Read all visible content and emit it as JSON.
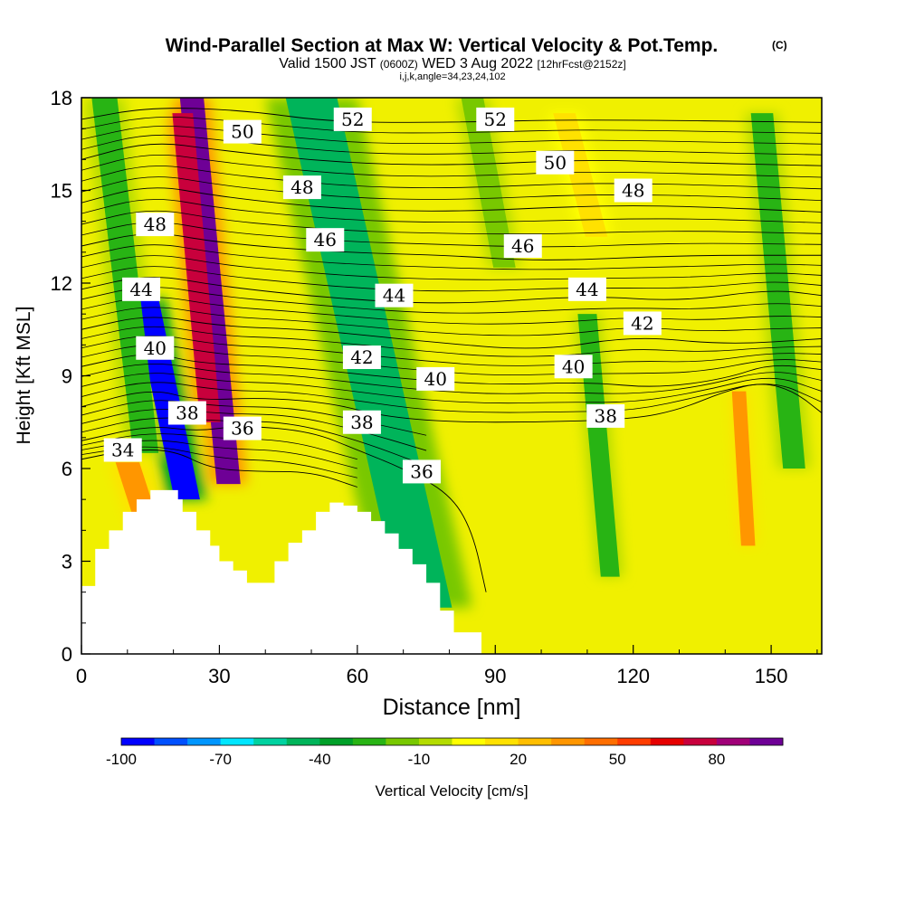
{
  "chart_data": {
    "type": "heatmap",
    "title": "Wind-Parallel Section at Max W: Vertical Velocity & Pot.Temp.",
    "title_mark": "(C)",
    "subtitle_valid": "Valid 1500 JST",
    "subtitle_utc": "(0600Z)",
    "subtitle_date": "WED 3 Aug 2022",
    "subtitle_fcst": "[12hrFcst@2152z]",
    "subtitle_ijk": "i,j,k,angle=34,23,24,102",
    "xlabel": "Distance [nm]",
    "ylabel": "Height [Kft MSL]",
    "xlim": [
      0,
      161
    ],
    "ylim": [
      0,
      18
    ],
    "x_ticks": [
      "0",
      "30",
      "60",
      "90",
      "120",
      "150"
    ],
    "x_tick_values": [
      0,
      30,
      60,
      90,
      120,
      150
    ],
    "y_ticks": [
      "0",
      "3",
      "6",
      "9",
      "12",
      "15",
      "18"
    ],
    "y_tick_values": [
      0,
      3,
      6,
      9,
      12,
      15,
      18
    ],
    "colorbar": {
      "label": "Vertical Velocity [cm/s]",
      "tick_labels": [
        "-100",
        "-70",
        "-40",
        "-10",
        "20",
        "50",
        "80"
      ],
      "tick_values": [
        -100,
        -70,
        -40,
        -10,
        20,
        50,
        80
      ],
      "levels": [
        -100,
        -90,
        -80,
        -70,
        -60,
        -50,
        -40,
        -30,
        -20,
        -10,
        0,
        10,
        20,
        30,
        40,
        50,
        60,
        70,
        80,
        90
      ],
      "colors": [
        "#0000ff",
        "#0050ff",
        "#0096ff",
        "#00e6ff",
        "#00d2a0",
        "#00b45a",
        "#00a028",
        "#28b414",
        "#78c800",
        "#b4dc00",
        "#ffff00",
        "#ffe100",
        "#ffbe00",
        "#ff9600",
        "#ff6e00",
        "#ff3c00",
        "#e60000",
        "#c8003c",
        "#a00078",
        "#6e0096"
      ]
    },
    "terrain_profile": {
      "x": [
        0,
        3,
        3,
        6,
        6,
        9,
        9,
        12,
        12,
        15,
        15,
        18,
        18,
        21,
        21,
        22,
        22,
        25,
        25,
        28,
        28,
        30,
        30,
        33,
        33,
        36,
        36,
        42,
        42,
        45,
        45,
        48,
        48,
        51,
        51,
        54,
        54,
        57,
        57,
        60,
        60,
        63,
        63,
        66,
        66,
        69,
        69,
        72,
        72,
        75,
        75,
        78,
        78,
        81,
        81,
        87,
        87
      ],
      "y": [
        2.2,
        2.2,
        3.4,
        3.4,
        4.0,
        4.0,
        4.6,
        4.6,
        5.0,
        5.0,
        5.3,
        5.3,
        5.3,
        5.3,
        5.0,
        5.0,
        4.6,
        4.6,
        4.0,
        4.0,
        3.5,
        3.5,
        3.0,
        3.0,
        2.7,
        2.7,
        2.3,
        2.3,
        3.0,
        3.0,
        3.6,
        3.6,
        4.0,
        4.0,
        4.6,
        4.6,
        4.9,
        4.9,
        4.8,
        4.8,
        4.6,
        4.6,
        4.3,
        4.3,
        3.9,
        3.9,
        3.4,
        3.4,
        2.9,
        2.9,
        2.3,
        2.3,
        1.4,
        1.4,
        0.7,
        0.7,
        0.3
      ]
    },
    "updrafts": [
      {
        "x0": 24,
        "x1": 32,
        "ytop": 18,
        "ybot": 5.5,
        "w": 90
      },
      {
        "x0": 22,
        "x1": 28,
        "ytop": 17.5,
        "ybot": 7.5,
        "w": 75
      },
      {
        "x0": 10,
        "x1": 18,
        "ytop": 6.2,
        "ybot": 2.5,
        "w": 30
      },
      {
        "x0": 143,
        "x1": 145,
        "ytop": 8.5,
        "ybot": 3.5,
        "w": 30
      },
      {
        "x0": 105,
        "x1": 112,
        "ytop": 17.5,
        "ybot": 13.5,
        "w": 15
      }
    ],
    "downdrafts": [
      {
        "x0": 14,
        "x1": 23,
        "ytop": 11.5,
        "ybot": 5.0,
        "w": -95
      },
      {
        "x0": 50,
        "x1": 75,
        "ytop": 18,
        "ybot": 1.5,
        "w": -45
      },
      {
        "x0": 5,
        "x1": 14,
        "ytop": 18,
        "ybot": 6.5,
        "w": -25
      },
      {
        "x0": 85,
        "x1": 92,
        "ytop": 18,
        "ybot": 12.5,
        "w": -20
      },
      {
        "x0": 110,
        "x1": 115,
        "ytop": 11.0,
        "ybot": 2.5,
        "w": -25
      },
      {
        "x0": 148,
        "x1": 155,
        "ytop": 17.5,
        "ybot": 6.0,
        "w": -25
      }
    ],
    "isentropes": [
      {
        "value": 34,
        "points": [
          [
            0,
            6.3
          ],
          [
            10,
            6.6
          ],
          [
            20,
            6.6
          ],
          [
            28,
            6.0
          ],
          [
            38,
            5.9
          ],
          [
            50,
            5.9
          ],
          [
            60,
            5.4
          ]
        ]
      },
      {
        "value": 36,
        "points": [
          [
            0,
            6.9
          ],
          [
            15,
            7.4
          ],
          [
            25,
            7.2
          ],
          [
            35,
            7.4
          ],
          [
            50,
            7.2
          ],
          [
            60,
            6.6
          ],
          [
            70,
            6.0
          ],
          [
            80,
            5.2
          ],
          [
            85,
            4.0
          ],
          [
            88,
            2.0
          ]
        ]
      },
      {
        "value": 38,
        "points": [
          [
            0,
            8.0
          ],
          [
            15,
            8.6
          ],
          [
            25,
            8.2
          ],
          [
            40,
            8.3
          ],
          [
            55,
            8.1
          ],
          [
            65,
            7.7
          ],
          [
            80,
            7.5
          ],
          [
            100,
            7.5
          ],
          [
            120,
            7.6
          ],
          [
            130,
            7.9
          ],
          [
            140,
            8.5
          ],
          [
            148,
            8.8
          ],
          [
            155,
            8.5
          ],
          [
            161,
            7.8
          ]
        ]
      },
      {
        "value": 40,
        "points": [
          [
            0,
            9.3
          ],
          [
            15,
            9.8
          ],
          [
            25,
            9.4
          ],
          [
            45,
            9.3
          ],
          [
            70,
            8.9
          ],
          [
            90,
            8.7
          ],
          [
            110,
            8.8
          ],
          [
            125,
            8.6
          ],
          [
            140,
            8.9
          ],
          [
            150,
            9.4
          ],
          [
            161,
            9.2
          ]
        ]
      },
      {
        "value": 42,
        "points": [
          [
            0,
            10.5
          ],
          [
            15,
            11.0
          ],
          [
            30,
            10.6
          ],
          [
            50,
            10.5
          ],
          [
            75,
            10.1
          ],
          [
            100,
            9.8
          ],
          [
            120,
            10.3
          ],
          [
            140,
            10.0
          ],
          [
            161,
            10.2
          ]
        ]
      },
      {
        "value": 44,
        "points": [
          [
            0,
            11.8
          ],
          [
            15,
            12.3
          ],
          [
            30,
            11.9
          ],
          [
            55,
            11.5
          ],
          [
            80,
            11.3
          ],
          [
            110,
            11.6
          ],
          [
            130,
            11.4
          ],
          [
            150,
            11.8
          ],
          [
            161,
            11.6
          ]
        ]
      },
      {
        "value": 46,
        "points": [
          [
            0,
            13.2
          ],
          [
            15,
            13.7
          ],
          [
            30,
            13.3
          ],
          [
            55,
            13.0
          ],
          [
            80,
            12.9
          ],
          [
            100,
            12.7
          ],
          [
            130,
            12.9
          ],
          [
            161,
            12.9
          ]
        ]
      },
      {
        "value": 48,
        "points": [
          [
            0,
            14.6
          ],
          [
            15,
            15.2
          ],
          [
            30,
            14.8
          ],
          [
            55,
            14.4
          ],
          [
            80,
            14.3
          ],
          [
            110,
            14.5
          ],
          [
            130,
            14.5
          ],
          [
            161,
            14.3
          ]
        ]
      },
      {
        "value": 50,
        "points": [
          [
            0,
            16.0
          ],
          [
            15,
            16.6
          ],
          [
            30,
            16.3
          ],
          [
            55,
            15.9
          ],
          [
            80,
            15.8
          ],
          [
            110,
            16.0
          ],
          [
            130,
            15.9
          ],
          [
            161,
            15.8
          ]
        ]
      },
      {
        "value": 52,
        "points": [
          [
            0,
            17.3
          ],
          [
            15,
            17.7
          ],
          [
            35,
            17.6
          ],
          [
            55,
            17.2
          ],
          [
            80,
            17.2
          ],
          [
            110,
            17.3
          ],
          [
            161,
            17.2
          ]
        ]
      }
    ],
    "contour_labels": [
      {
        "text": "34",
        "x": 9,
        "y": 6.6
      },
      {
        "text": "36",
        "x": 35,
        "y": 7.3
      },
      {
        "text": "36",
        "x": 74,
        "y": 5.9
      },
      {
        "text": "38",
        "x": 23,
        "y": 7.8
      },
      {
        "text": "38",
        "x": 61,
        "y": 7.5
      },
      {
        "text": "38",
        "x": 114,
        "y": 7.7
      },
      {
        "text": "40",
        "x": 16,
        "y": 9.9
      },
      {
        "text": "40",
        "x": 77,
        "y": 8.9
      },
      {
        "text": "40",
        "x": 107,
        "y": 9.3
      },
      {
        "text": "42",
        "x": 61,
        "y": 9.6
      },
      {
        "text": "42",
        "x": 122,
        "y": 10.7
      },
      {
        "text": "44",
        "x": 13,
        "y": 11.8
      },
      {
        "text": "44",
        "x": 68,
        "y": 11.6
      },
      {
        "text": "44",
        "x": 110,
        "y": 11.8
      },
      {
        "text": "46",
        "x": 53,
        "y": 13.4
      },
      {
        "text": "46",
        "x": 96,
        "y": 13.2
      },
      {
        "text": "48",
        "x": 16,
        "y": 13.9
      },
      {
        "text": "48",
        "x": 48,
        "y": 15.1
      },
      {
        "text": "48",
        "x": 120,
        "y": 15.0
      },
      {
        "text": "50",
        "x": 35,
        "y": 16.9
      },
      {
        "text": "50",
        "x": 103,
        "y": 15.9
      },
      {
        "text": "52",
        "x": 59,
        "y": 17.3
      },
      {
        "text": "52",
        "x": 90,
        "y": 17.3
      }
    ]
  }
}
